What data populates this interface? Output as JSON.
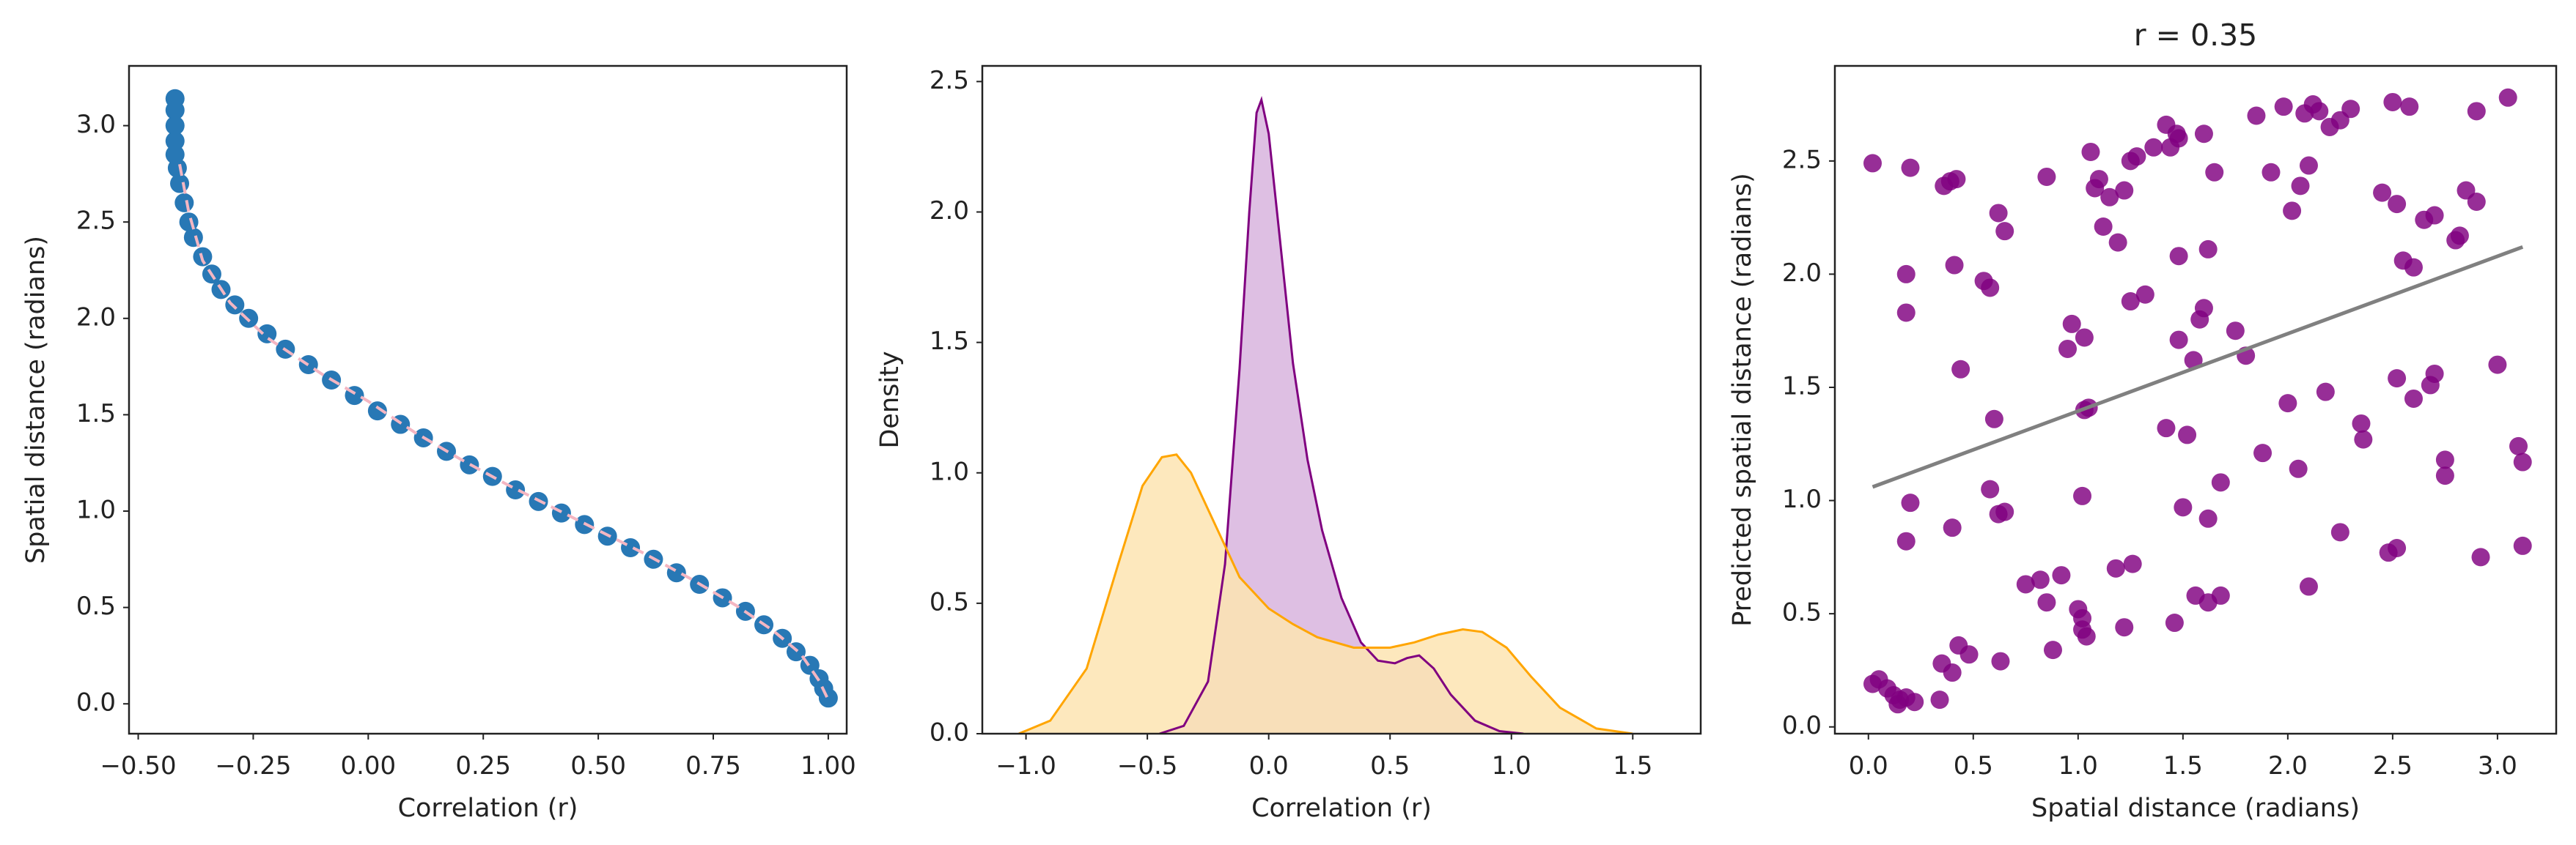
{
  "chart_data": [
    {
      "type": "scatter",
      "title": "",
      "xlabel": "Correlation (r)",
      "ylabel": "Spatial distance (radians)",
      "xlim": [
        -0.52,
        1.04
      ],
      "ylim": [
        -0.155,
        3.31
      ],
      "xticks": [
        -0.5,
        -0.25,
        0.0,
        0.25,
        0.5,
        0.75,
        1.0
      ],
      "xtick_labels": [
        "−0.50",
        "−0.25",
        "0.00",
        "0.25",
        "0.50",
        "0.75",
        "1.00"
      ],
      "yticks": [
        0.0,
        0.5,
        1.0,
        1.5,
        2.0,
        2.5,
        3.0
      ],
      "ytick_labels": [
        "0.0",
        "0.5",
        "1.0",
        "1.5",
        "2.0",
        "2.5",
        "3.0"
      ],
      "grid": false,
      "series": [
        {
          "kind": "points",
          "color": "#2878b5",
          "points": [
            [
              -0.42,
              3.14
            ],
            [
              -0.42,
              3.08
            ],
            [
              -0.42,
              3.0
            ],
            [
              -0.42,
              2.92
            ],
            [
              -0.42,
              2.85
            ],
            [
              -0.415,
              2.78
            ],
            [
              -0.41,
              2.7
            ],
            [
              -0.4,
              2.6
            ],
            [
              -0.39,
              2.5
            ],
            [
              -0.38,
              2.42
            ],
            [
              -0.36,
              2.32
            ],
            [
              -0.34,
              2.23
            ],
            [
              -0.32,
              2.15
            ],
            [
              -0.29,
              2.07
            ],
            [
              -0.26,
              2.0
            ],
            [
              -0.22,
              1.92
            ],
            [
              -0.18,
              1.84
            ],
            [
              -0.13,
              1.76
            ],
            [
              -0.08,
              1.68
            ],
            [
              -0.03,
              1.6
            ],
            [
              0.02,
              1.52
            ],
            [
              0.07,
              1.45
            ],
            [
              0.12,
              1.38
            ],
            [
              0.17,
              1.31
            ],
            [
              0.22,
              1.24
            ],
            [
              0.27,
              1.18
            ],
            [
              0.32,
              1.11
            ],
            [
              0.37,
              1.05
            ],
            [
              0.42,
              0.99
            ],
            [
              0.47,
              0.93
            ],
            [
              0.52,
              0.87
            ],
            [
              0.57,
              0.81
            ],
            [
              0.62,
              0.75
            ],
            [
              0.67,
              0.68
            ],
            [
              0.72,
              0.62
            ],
            [
              0.77,
              0.55
            ],
            [
              0.82,
              0.48
            ],
            [
              0.86,
              0.41
            ],
            [
              0.9,
              0.34
            ],
            [
              0.93,
              0.27
            ],
            [
              0.96,
              0.2
            ],
            [
              0.98,
              0.13
            ],
            [
              0.99,
              0.08
            ],
            [
              1.0,
              0.03
            ]
          ]
        },
        {
          "kind": "line",
          "style": "dashed",
          "color": "#f4b6c2",
          "points": [
            [
              -0.41,
              2.8
            ],
            [
              -0.39,
              2.55
            ],
            [
              -0.36,
              2.3
            ],
            [
              -0.3,
              2.08
            ],
            [
              -0.22,
              1.9
            ],
            [
              -0.1,
              1.71
            ],
            [
              0.0,
              1.57
            ],
            [
              0.1,
              1.41
            ],
            [
              0.2,
              1.27
            ],
            [
              0.3,
              1.14
            ],
            [
              0.4,
              1.02
            ],
            [
              0.5,
              0.9
            ],
            [
              0.6,
              0.78
            ],
            [
              0.7,
              0.65
            ],
            [
              0.8,
              0.51
            ],
            [
              0.88,
              0.38
            ],
            [
              0.94,
              0.26
            ],
            [
              0.98,
              0.12
            ],
            [
              1.0,
              0.02
            ]
          ]
        }
      ]
    },
    {
      "type": "area",
      "title": "",
      "xlabel": "Correlation (r)",
      "ylabel": "Density",
      "xlim": [
        -1.18,
        1.78
      ],
      "ylim": [
        0,
        2.56
      ],
      "xticks": [
        -1.0,
        -0.5,
        0.0,
        0.5,
        1.0,
        1.5
      ],
      "xtick_labels": [
        "−1.0",
        "−0.5",
        "0.0",
        "0.5",
        "1.0",
        "1.5"
      ],
      "yticks": [
        0.0,
        0.5,
        1.0,
        1.5,
        2.0,
        2.5
      ],
      "ytick_labels": [
        "0.0",
        "0.5",
        "1.0",
        "1.5",
        "2.0",
        "2.5"
      ],
      "grid": false,
      "series": [
        {
          "color": "#800080",
          "fill": "#d8b4de",
          "points": [
            [
              -0.45,
              0.0
            ],
            [
              -0.35,
              0.03
            ],
            [
              -0.25,
              0.2
            ],
            [
              -0.18,
              0.65
            ],
            [
              -0.12,
              1.4
            ],
            [
              -0.08,
              2.0
            ],
            [
              -0.05,
              2.38
            ],
            [
              -0.03,
              2.43
            ],
            [
              0.0,
              2.3
            ],
            [
              0.04,
              1.95
            ],
            [
              0.1,
              1.42
            ],
            [
              0.16,
              1.05
            ],
            [
              0.22,
              0.78
            ],
            [
              0.3,
              0.52
            ],
            [
              0.38,
              0.35
            ],
            [
              0.45,
              0.28
            ],
            [
              0.52,
              0.27
            ],
            [
              0.57,
              0.29
            ],
            [
              0.62,
              0.3
            ],
            [
              0.68,
              0.25
            ],
            [
              0.75,
              0.15
            ],
            [
              0.85,
              0.05
            ],
            [
              0.95,
              0.01
            ],
            [
              1.05,
              0.0
            ]
          ]
        },
        {
          "color": "#ffa500",
          "fill": "#fde4b2",
          "points": [
            [
              -1.03,
              0.0
            ],
            [
              -0.9,
              0.05
            ],
            [
              -0.75,
              0.25
            ],
            [
              -0.62,
              0.65
            ],
            [
              -0.52,
              0.95
            ],
            [
              -0.44,
              1.06
            ],
            [
              -0.38,
              1.07
            ],
            [
              -0.32,
              1.0
            ],
            [
              -0.22,
              0.8
            ],
            [
              -0.12,
              0.6
            ],
            [
              0.0,
              0.48
            ],
            [
              0.1,
              0.42
            ],
            [
              0.2,
              0.37
            ],
            [
              0.35,
              0.33
            ],
            [
              0.5,
              0.33
            ],
            [
              0.6,
              0.35
            ],
            [
              0.7,
              0.38
            ],
            [
              0.8,
              0.4
            ],
            [
              0.88,
              0.39
            ],
            [
              0.98,
              0.33
            ],
            [
              1.08,
              0.22
            ],
            [
              1.2,
              0.1
            ],
            [
              1.35,
              0.02
            ],
            [
              1.5,
              0.0
            ]
          ]
        }
      ]
    },
    {
      "type": "scatter",
      "title": "r = 0.35",
      "xlabel": "Spatial distance (radians)",
      "ylabel": "Predicted spatial distance (radians)",
      "xlim": [
        -0.16,
        3.28
      ],
      "ylim": [
        -0.03,
        2.92
      ],
      "xticks": [
        0.0,
        0.5,
        1.0,
        1.5,
        2.0,
        2.5,
        3.0
      ],
      "xtick_labels": [
        "0.0",
        "0.5",
        "1.0",
        "1.5",
        "2.0",
        "2.5",
        "3.0"
      ],
      "yticks": [
        0.0,
        0.5,
        1.0,
        1.5,
        2.0,
        2.5
      ],
      "ytick_labels": [
        "0.0",
        "0.5",
        "1.0",
        "1.5",
        "2.0",
        "2.5"
      ],
      "grid": false,
      "series": [
        {
          "kind": "points",
          "color": "#800080",
          "points": [
            [
              0.02,
              0.19
            ],
            [
              0.05,
              0.21
            ],
            [
              0.09,
              0.17
            ],
            [
              0.12,
              0.14
            ],
            [
              0.15,
              0.12
            ],
            [
              0.18,
              0.13
            ],
            [
              0.22,
              0.11
            ],
            [
              0.14,
              0.1
            ],
            [
              0.35,
              0.28
            ],
            [
              0.4,
              0.24
            ],
            [
              0.43,
              0.36
            ],
            [
              0.48,
              0.32
            ],
            [
              0.34,
              0.12
            ],
            [
              0.02,
              2.49
            ],
            [
              0.18,
              2.0
            ],
            [
              0.18,
              1.83
            ],
            [
              0.2,
              2.47
            ],
            [
              0.18,
              0.82
            ],
            [
              0.2,
              0.99
            ],
            [
              0.36,
              2.39
            ],
            [
              0.39,
              2.41
            ],
            [
              0.42,
              2.42
            ],
            [
              0.4,
              0.88
            ],
            [
              0.41,
              2.04
            ],
            [
              0.44,
              1.58
            ],
            [
              0.55,
              1.97
            ],
            [
              0.58,
              1.94
            ],
            [
              0.58,
              1.05
            ],
            [
              0.6,
              1.36
            ],
            [
              0.62,
              2.27
            ],
            [
              0.65,
              2.19
            ],
            [
              0.62,
              0.94
            ],
            [
              0.65,
              0.95
            ],
            [
              0.63,
              0.29
            ],
            [
              0.75,
              0.63
            ],
            [
              0.82,
              0.65
            ],
            [
              0.85,
              0.55
            ],
            [
              0.88,
              0.34
            ],
            [
              0.92,
              0.67
            ],
            [
              0.85,
              2.43
            ],
            [
              0.95,
              1.67
            ],
            [
              0.97,
              1.78
            ],
            [
              1.0,
              0.52
            ],
            [
              1.02,
              0.48
            ],
            [
              1.03,
              1.72
            ],
            [
              1.03,
              1.4
            ],
            [
              1.05,
              1.41
            ],
            [
              1.02,
              0.43
            ],
            [
              1.04,
              0.4
            ],
            [
              1.02,
              1.02
            ],
            [
              1.08,
              2.38
            ],
            [
              1.06,
              2.54
            ],
            [
              1.1,
              2.42
            ],
            [
              1.12,
              2.21
            ],
            [
              1.15,
              2.34
            ],
            [
              1.19,
              2.14
            ],
            [
              1.18,
              0.7
            ],
            [
              1.22,
              0.44
            ],
            [
              1.22,
              2.37
            ],
            [
              1.25,
              2.5
            ],
            [
              1.28,
              2.52
            ],
            [
              1.25,
              1.88
            ],
            [
              1.32,
              1.91
            ],
            [
              1.26,
              0.72
            ],
            [
              1.36,
              2.56
            ],
            [
              1.42,
              2.66
            ],
            [
              1.44,
              2.56
            ],
            [
              1.47,
              2.62
            ],
            [
              1.48,
              2.6
            ],
            [
              1.48,
              2.08
            ],
            [
              1.42,
              1.32
            ],
            [
              1.48,
              1.71
            ],
            [
              1.5,
              0.97
            ],
            [
              1.52,
              1.29
            ],
            [
              1.46,
              0.46
            ],
            [
              1.55,
              1.62
            ],
            [
              1.58,
              1.8
            ],
            [
              1.6,
              1.85
            ],
            [
              1.62,
              2.11
            ],
            [
              1.65,
              2.45
            ],
            [
              1.6,
              2.62
            ],
            [
              1.62,
              0.55
            ],
            [
              1.68,
              0.58
            ],
            [
              1.68,
              1.08
            ],
            [
              1.62,
              0.92
            ],
            [
              1.56,
              0.58
            ],
            [
              1.75,
              1.75
            ],
            [
              1.8,
              1.64
            ],
            [
              1.85,
              2.7
            ],
            [
              1.88,
              1.21
            ],
            [
              1.92,
              2.45
            ],
            [
              1.98,
              2.74
            ],
            [
              2.0,
              1.43
            ],
            [
              2.02,
              2.28
            ],
            [
              2.05,
              1.14
            ],
            [
              2.06,
              2.39
            ],
            [
              2.1,
              2.48
            ],
            [
              2.08,
              2.71
            ],
            [
              2.12,
              2.75
            ],
            [
              2.15,
              2.72
            ],
            [
              2.18,
              1.48
            ],
            [
              2.2,
              2.65
            ],
            [
              2.25,
              2.68
            ],
            [
              2.3,
              2.73
            ],
            [
              2.1,
              0.62
            ],
            [
              2.25,
              0.86
            ],
            [
              2.35,
              1.34
            ],
            [
              2.36,
              1.27
            ],
            [
              2.45,
              2.36
            ],
            [
              2.5,
              2.76
            ],
            [
              2.52,
              2.31
            ],
            [
              2.52,
              1.54
            ],
            [
              2.55,
              2.06
            ],
            [
              2.58,
              2.74
            ],
            [
              2.6,
              2.03
            ],
            [
              2.6,
              1.45
            ],
            [
              2.65,
              2.24
            ],
            [
              2.7,
              2.26
            ],
            [
              2.68,
              1.51
            ],
            [
              2.7,
              1.56
            ],
            [
              2.75,
              1.18
            ],
            [
              2.75,
              1.11
            ],
            [
              2.8,
              2.15
            ],
            [
              2.85,
              2.37
            ],
            [
              2.82,
              2.17
            ],
            [
              2.9,
              2.72
            ],
            [
              2.9,
              2.32
            ],
            [
              2.92,
              0.75
            ],
            [
              3.0,
              1.6
            ],
            [
              3.05,
              2.78
            ],
            [
              3.1,
              1.24
            ],
            [
              3.12,
              1.17
            ],
            [
              3.12,
              0.8
            ],
            [
              2.48,
              0.77
            ],
            [
              2.52,
              0.79
            ]
          ]
        },
        {
          "kind": "line",
          "color": "#808080",
          "points": [
            [
              0.02,
              1.06
            ],
            [
              3.12,
              2.12
            ]
          ]
        }
      ]
    }
  ]
}
